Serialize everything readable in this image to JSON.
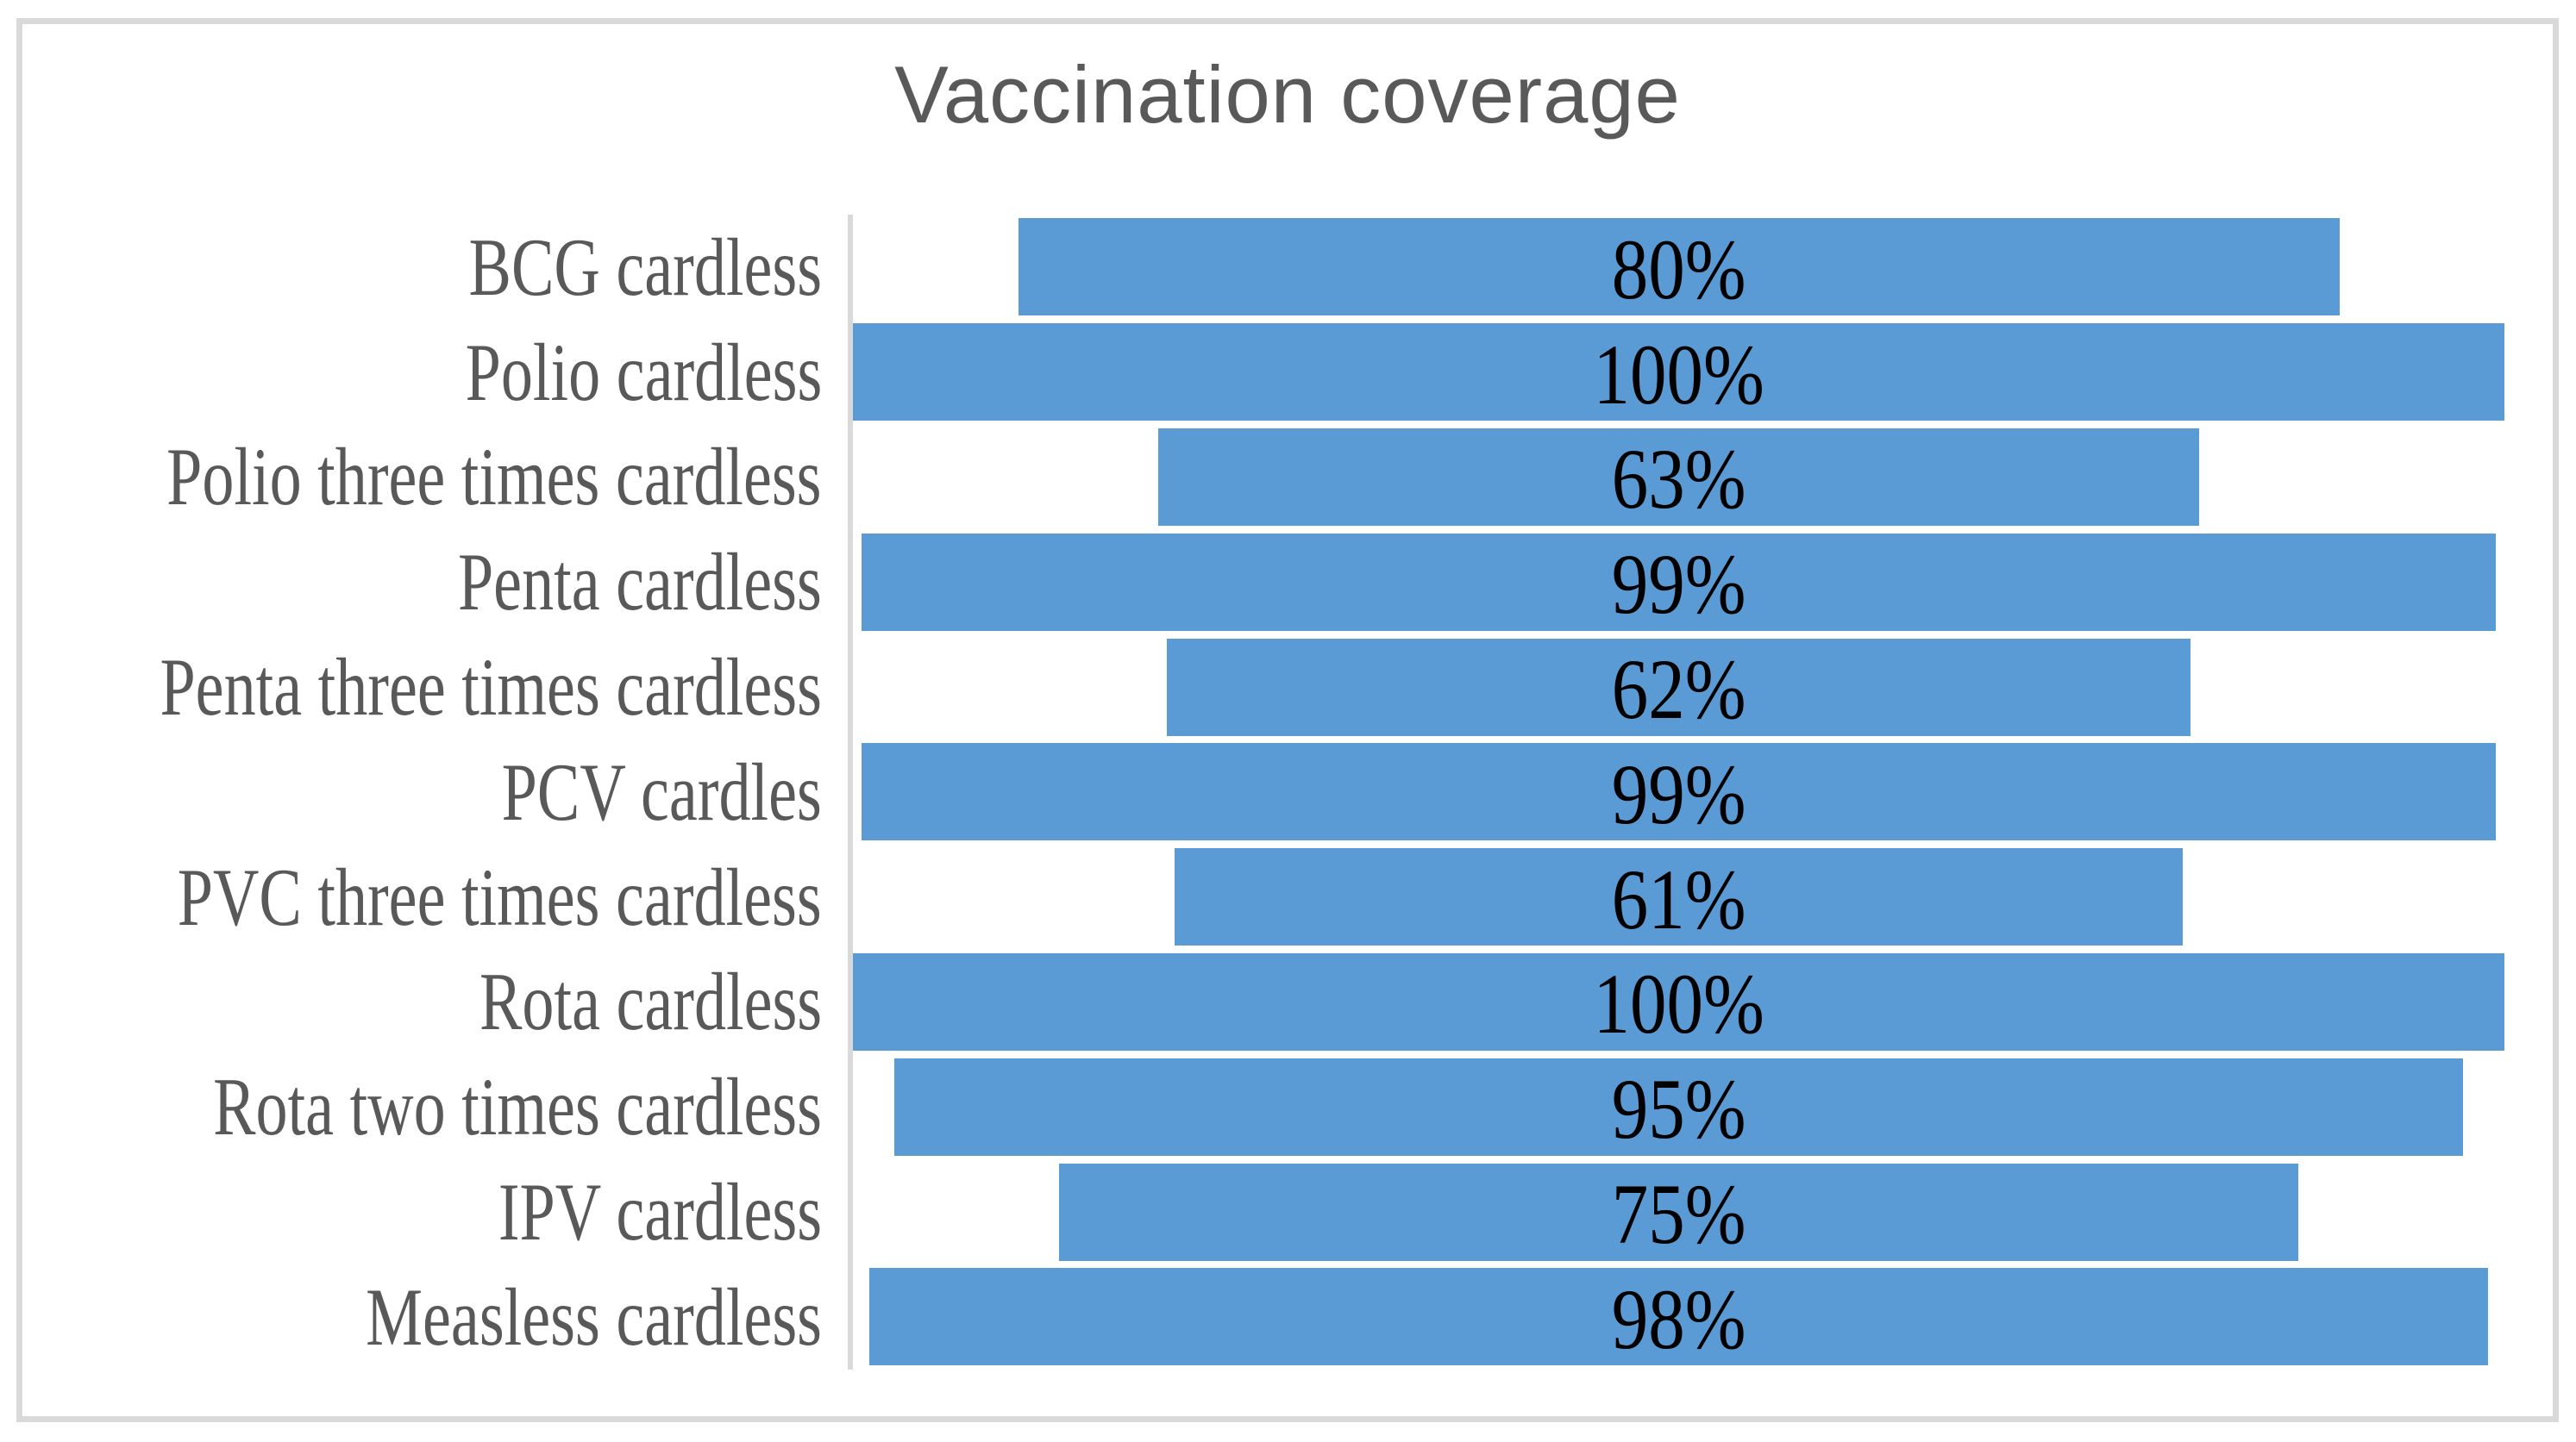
{
  "figure": {
    "background": "#FFFFFF",
    "border_color": "#D9D9D9"
  },
  "chart_data": {
    "type": "bar",
    "subtype": "funnel",
    "orientation": "horizontal",
    "title": "Vaccination coverage",
    "categories": [
      "BCG cardless",
      "Polio cardless",
      "Polio three times cardless",
      "Penta cardless",
      "Penta three times cardless",
      "PCV cardles",
      "PVC three times cardless",
      "Rota cardless",
      "Rota two times cardless",
      "IPV cardless",
      "Measless cardless"
    ],
    "values": [
      80,
      100,
      63,
      99,
      62,
      99,
      61,
      100,
      95,
      75,
      98
    ],
    "value_labels": [
      "80%",
      "100%",
      "63%",
      "99%",
      "62%",
      "99%",
      "61%",
      "100%",
      "95%",
      "75%",
      "98%"
    ],
    "xlim": [
      0,
      100
    ],
    "bars_aligned": "center",
    "bar_color": "#5B9BD5",
    "category_label_color": "#595959",
    "value_label_color": "#000000",
    "title_color": "#595959",
    "axis_line_color": "#D9D9D9",
    "gridlines": "off",
    "legend": "none"
  }
}
